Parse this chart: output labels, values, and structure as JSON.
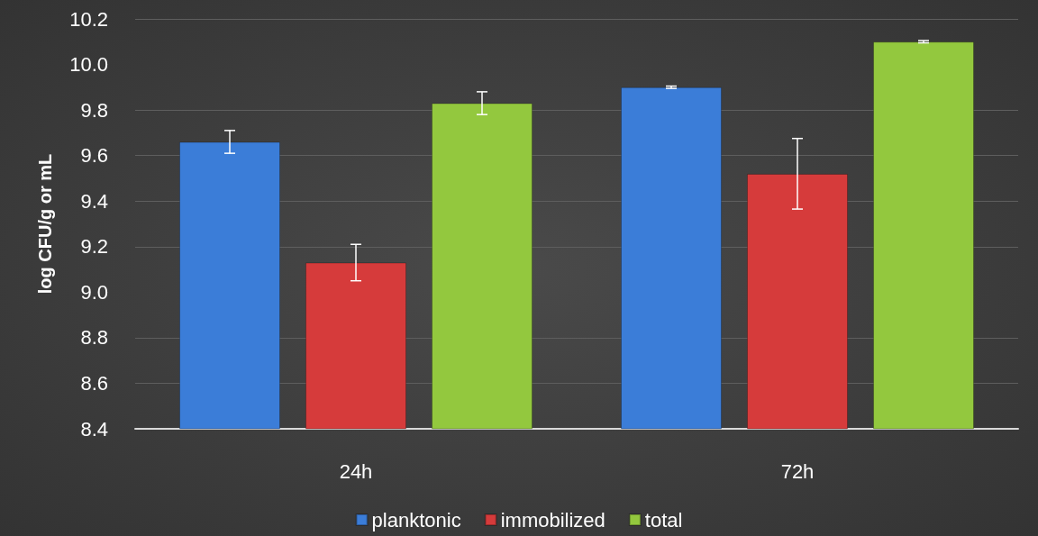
{
  "chart_data": {
    "type": "bar",
    "ylabel": "log CFU/g or mL",
    "categories": [
      "24h",
      "72h"
    ],
    "series": [
      {
        "name": "planktonic",
        "color": "#3b7dd8",
        "values": [
          9.66,
          9.9
        ],
        "errors": [
          0.05,
          0.005
        ]
      },
      {
        "name": "immobilized",
        "color": "#d63b3b",
        "values": [
          9.13,
          9.52
        ],
        "errors": [
          0.08,
          0.155
        ]
      },
      {
        "name": "total",
        "color": "#93c83e",
        "values": [
          9.83,
          10.1
        ],
        "errors": [
          0.05,
          0.005
        ]
      }
    ],
    "ylim": [
      8.4,
      10.2
    ],
    "yticks": [
      8.4,
      8.6,
      8.8,
      {
        "value": 9,
        "label": "9.0"
      },
      9.2,
      9.4,
      9.6,
      9.8,
      {
        "value": 10,
        "label": "10.0"
      },
      10.2
    ],
    "grid": "y",
    "legend": "bottom"
  }
}
